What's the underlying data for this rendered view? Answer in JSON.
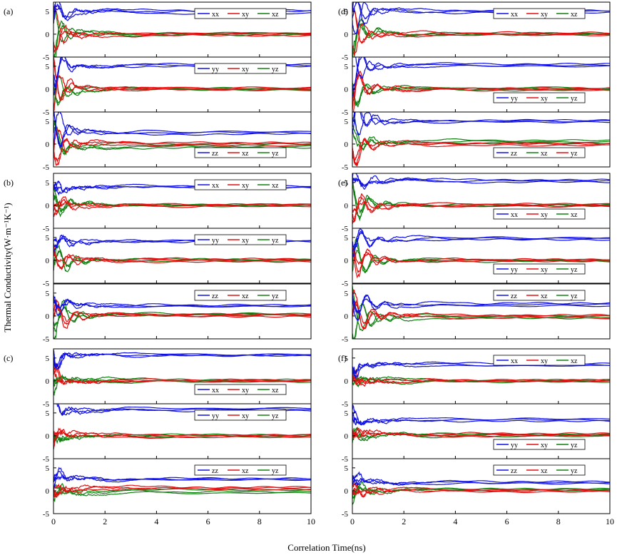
{
  "figure": {
    "xlabel": "Correlation Time(ns)",
    "ylabel": "Thermal Conductivity(W·m⁻¹K⁻¹)"
  },
  "colors": {
    "blue": "#1010e0",
    "red": "#e01010",
    "green": "#108010"
  },
  "chart_data": [
    {
      "type": "line",
      "panel_label": "(a)",
      "xlim": [
        0,
        10
      ],
      "ylim": [
        -5,
        7
      ],
      "x_ticks": [
        0,
        2,
        4,
        6,
        8,
        10
      ],
      "y_ticks": [
        -5,
        0,
        5
      ],
      "subplots": [
        {
          "legend_position": "top-right",
          "legend": [
            {
              "name": "xx",
              "color": "blue"
            },
            {
              "name": "xy",
              "color": "red"
            },
            {
              "name": "xz",
              "color": "green"
            }
          ],
          "final_values": {
            "blue": [
              5.0,
              4.6,
              5.2
            ],
            "red": [
              -0.3,
              0.2,
              0.0
            ],
            "green": [
              0.1,
              -0.2,
              0.2
            ]
          }
        },
        {
          "legend_position": "top-right",
          "legend": [
            {
              "name": "yy",
              "color": "blue"
            },
            {
              "name": "xy",
              "color": "red"
            },
            {
              "name": "yz",
              "color": "green"
            }
          ],
          "final_values": {
            "blue": [
              5.2,
              5.4,
              5.0
            ],
            "red": [
              0.0,
              0.3,
              -0.1
            ],
            "green": [
              0.2,
              0.0,
              -0.2
            ]
          }
        },
        {
          "legend_position": "bottom-right",
          "legend": [
            {
              "name": "zz",
              "color": "blue"
            },
            {
              "name": "xz",
              "color": "red"
            },
            {
              "name": "yz",
              "color": "green"
            }
          ],
          "final_values": {
            "blue": [
              2.5,
              2.2,
              2.7
            ],
            "red": [
              0.3,
              -0.3,
              0.1
            ],
            "green": [
              -0.5,
              -0.8,
              0.0
            ]
          }
        }
      ]
    },
    {
      "type": "line",
      "panel_label": "(b)",
      "xlim": [
        0,
        10
      ],
      "ylim": [
        -5,
        7
      ],
      "x_ticks": [
        0,
        2,
        4,
        6,
        8,
        10
      ],
      "y_ticks": [
        -5,
        0,
        5
      ],
      "subplots": [
        {
          "legend_position": "top-right",
          "legend": [
            {
              "name": "xx",
              "color": "blue"
            },
            {
              "name": "xy",
              "color": "red"
            },
            {
              "name": "xz",
              "color": "green"
            }
          ],
          "final_values": {
            "blue": [
              4.0,
              4.2,
              3.9
            ],
            "red": [
              0.1,
              -0.2,
              0.2
            ],
            "green": [
              0.0,
              0.2,
              -0.1
            ]
          }
        },
        {
          "legend_position": "top-right",
          "legend": [
            {
              "name": "yy",
              "color": "blue"
            },
            {
              "name": "xy",
              "color": "red"
            },
            {
              "name": "yz",
              "color": "green"
            }
          ],
          "final_values": {
            "blue": [
              4.2,
              4.3,
              4.1
            ],
            "red": [
              0.3,
              0.0,
              -0.3
            ],
            "green": [
              0.1,
              0.2,
              -0.1
            ]
          }
        },
        {
          "legend_position": "top-right",
          "legend": [
            {
              "name": "zz",
              "color": "blue"
            },
            {
              "name": "xz",
              "color": "red"
            },
            {
              "name": "yz",
              "color": "green"
            }
          ],
          "final_values": {
            "blue": [
              2.2,
              2.4,
              2.1
            ],
            "red": [
              0.4,
              0.1,
              -0.1
            ],
            "green": [
              0.3,
              0.2,
              0.5
            ]
          }
        }
      ]
    },
    {
      "type": "line",
      "panel_label": "(c)",
      "xlim": [
        0,
        10
      ],
      "ylim": [
        -5,
        7
      ],
      "x_ticks": [
        0,
        2,
        4,
        6,
        8,
        10
      ],
      "y_ticks": [
        -5,
        0,
        5
      ],
      "subplots": [
        {
          "legend_position": "bottom-right",
          "legend": [
            {
              "name": "xx",
              "color": "blue"
            },
            {
              "name": "xy",
              "color": "red"
            },
            {
              "name": "xz",
              "color": "green"
            }
          ],
          "final_values": {
            "blue": [
              5.8,
              5.5,
              5.6
            ],
            "red": [
              0.2,
              -0.1,
              0.0
            ],
            "green": [
              0.0,
              0.3,
              -0.2
            ]
          }
        },
        {
          "legend_position": "top-right",
          "legend": [
            {
              "name": "yy",
              "color": "blue"
            },
            {
              "name": "xy",
              "color": "red"
            },
            {
              "name": "yz",
              "color": "green"
            }
          ],
          "final_values": {
            "blue": [
              5.8,
              5.5,
              6.0
            ],
            "red": [
              0.1,
              -0.3,
              0.2
            ],
            "green": [
              0.2,
              0.0,
              -0.2
            ]
          }
        },
        {
          "legend_position": "top-right",
          "legend": [
            {
              "name": "zz",
              "color": "blue"
            },
            {
              "name": "xz",
              "color": "red"
            },
            {
              "name": "yz",
              "color": "green"
            }
          ],
          "final_values": {
            "blue": [
              2.4,
              2.7,
              2.5
            ],
            "red": [
              0.8,
              0.3,
              0.6
            ],
            "green": [
              -0.2,
              -0.5,
              0.2
            ]
          }
        }
      ]
    },
    {
      "type": "line",
      "panel_label": "(d)",
      "xlim": [
        0,
        10
      ],
      "ylim": [
        -5,
        7
      ],
      "x_ticks": [
        0,
        2,
        4,
        6,
        8,
        10
      ],
      "y_ticks": [
        -5,
        0,
        5
      ],
      "subplots": [
        {
          "legend_position": "top-right",
          "legend": [
            {
              "name": "xx",
              "color": "blue"
            },
            {
              "name": "xy",
              "color": "red"
            },
            {
              "name": "xz",
              "color": "green"
            }
          ],
          "final_values": {
            "blue": [
              5.0,
              4.7,
              5.2
            ],
            "red": [
              0.0,
              -0.2,
              0.3
            ],
            "green": [
              0.2,
              -0.1,
              0.0
            ]
          }
        },
        {
          "legend_position": "bottom-right",
          "legend": [
            {
              "name": "yy",
              "color": "blue"
            },
            {
              "name": "xy",
              "color": "red"
            },
            {
              "name": "yz",
              "color": "green"
            }
          ],
          "final_values": {
            "blue": [
              5.2,
              5.5,
              5.0
            ],
            "red": [
              0.2,
              -0.2,
              0.0
            ],
            "green": [
              0.0,
              0.3,
              -0.2
            ]
          }
        },
        {
          "legend_position": "bottom-right",
          "legend": [
            {
              "name": "zz",
              "color": "blue"
            },
            {
              "name": "xz",
              "color": "green"
            },
            {
              "name": "yz",
              "color": "red"
            }
          ],
          "final_values": {
            "blue": [
              4.8,
              5.2,
              5.0
            ],
            "red": [
              0.0,
              -0.3,
              0.2
            ],
            "green": [
              0.8,
              0.5,
              0.2
            ]
          }
        }
      ]
    },
    {
      "type": "line",
      "panel_label": "(e)",
      "xlim": [
        0,
        10
      ],
      "ylim": [
        -5,
        7
      ],
      "x_ticks": [
        0,
        2,
        4,
        6,
        8,
        10
      ],
      "y_ticks": [
        -5,
        0,
        5
      ],
      "subplots": [
        {
          "legend_position": "bottom-right",
          "legend": [
            {
              "name": "xx",
              "color": "blue"
            },
            {
              "name": "xy",
              "color": "red"
            },
            {
              "name": "xz",
              "color": "green"
            }
          ],
          "final_values": {
            "blue": [
              5.4,
              5.1,
              5.6
            ],
            "red": [
              0.0,
              -0.2,
              0.3
            ],
            "green": [
              0.2,
              -0.1,
              0.0
            ]
          }
        },
        {
          "legend_position": "bottom-right",
          "legend": [
            {
              "name": "yy",
              "color": "blue"
            },
            {
              "name": "xy",
              "color": "red"
            },
            {
              "name": "yz",
              "color": "green"
            }
          ],
          "final_values": {
            "blue": [
              4.8,
              4.5,
              4.9
            ],
            "red": [
              0.2,
              0.0,
              -0.2
            ],
            "green": [
              -0.2,
              0.1,
              0.0
            ]
          }
        },
        {
          "legend_position": "top-right",
          "legend": [
            {
              "name": "zz",
              "color": "blue"
            },
            {
              "name": "xz",
              "color": "red"
            },
            {
              "name": "yz",
              "color": "green"
            }
          ],
          "final_values": {
            "blue": [
              2.5,
              2.8,
              2.2
            ],
            "red": [
              0.0,
              -0.4,
              0.2
            ],
            "green": [
              -0.5,
              -0.2,
              0.0
            ]
          }
        }
      ]
    },
    {
      "type": "line",
      "panel_label": "(f)",
      "xlim": [
        0,
        10
      ],
      "ylim": [
        -5,
        7
      ],
      "x_ticks": [
        0,
        2,
        4,
        6,
        8,
        10
      ],
      "y_ticks": [
        -5,
        0,
        5
      ],
      "subplots": [
        {
          "legend_position": "top-right",
          "legend": [
            {
              "name": "xx",
              "color": "blue"
            },
            {
              "name": "xy",
              "color": "red"
            },
            {
              "name": "xz",
              "color": "green"
            }
          ],
          "final_values": {
            "blue": [
              3.5,
              3.8,
              3.3
            ],
            "red": [
              0.2,
              -0.1,
              0.0
            ],
            "green": [
              0.0,
              0.2,
              -0.2
            ]
          }
        },
        {
          "legend_position": "bottom-right",
          "legend": [
            {
              "name": "yy",
              "color": "blue"
            },
            {
              "name": "xy",
              "color": "red"
            },
            {
              "name": "yz",
              "color": "green"
            }
          ],
          "final_values": {
            "blue": [
              3.5,
              3.2,
              3.7
            ],
            "red": [
              0.5,
              0.2,
              0.0
            ],
            "green": [
              0.3,
              -0.1,
              0.2
            ]
          }
        },
        {
          "legend_position": "top-right",
          "legend": [
            {
              "name": "zz",
              "color": "blue"
            },
            {
              "name": "xz",
              "color": "red"
            },
            {
              "name": "yz",
              "color": "green"
            }
          ],
          "final_values": {
            "blue": [
              1.8,
              2.0,
              1.6
            ],
            "red": [
              0.2,
              -0.2,
              0.0
            ],
            "green": [
              0.4,
              0.1,
              0.3
            ]
          }
        }
      ]
    }
  ]
}
